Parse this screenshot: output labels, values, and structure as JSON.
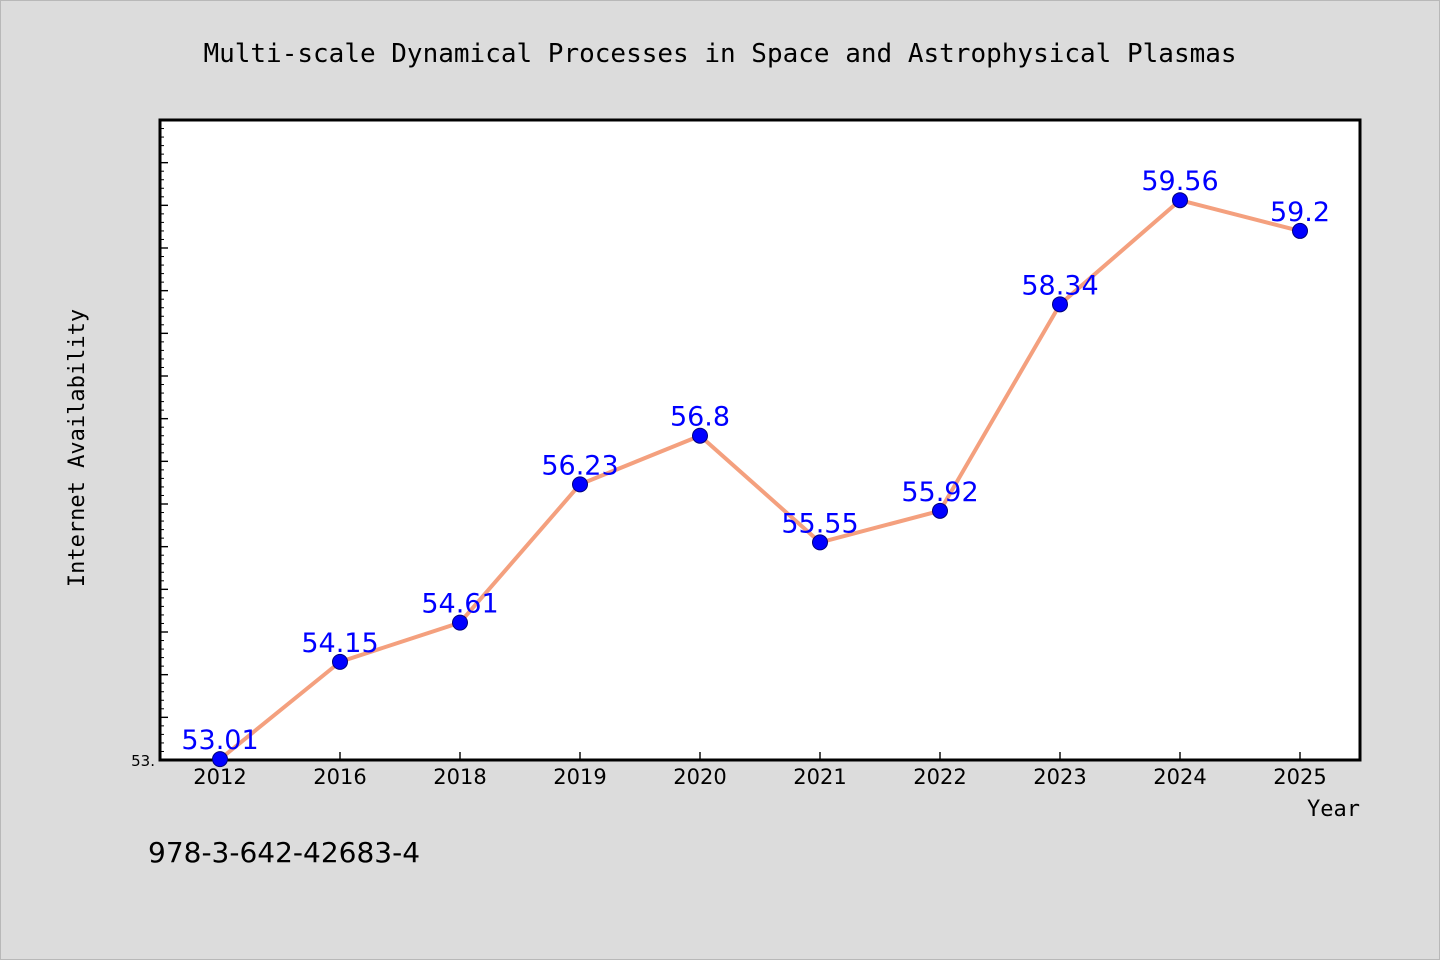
{
  "chart_data": {
    "type": "line",
    "title": "Multi-scale Dynamical Processes in Space and Astrophysical Plasmas",
    "xlabel": "Year",
    "ylabel": "Internet Availability",
    "categories": [
      "2012",
      "2016",
      "2018",
      "2019",
      "2020",
      "2021",
      "2022",
      "2023",
      "2024",
      "2025"
    ],
    "series": [
      {
        "values": [
          53.01,
          54.15,
          54.61,
          56.23,
          56.8,
          55.55,
          55.92,
          58.34,
          59.56,
          59.2
        ],
        "data_labels": [
          "53.01",
          "54.15",
          "54.61",
          "56.23",
          "56.8",
          "55.55",
          "55.92",
          "58.34",
          "59.56",
          "59.2"
        ]
      }
    ],
    "ylim": [
      53.0,
      60.5
    ],
    "y_tick_label": "53.",
    "grid": false,
    "colors": {
      "line": "#f4a07e",
      "marker": "#0000ff",
      "data_label": "#0000ff",
      "plot_background": "#ffffff",
      "figure_background": "#dcdcdc"
    }
  },
  "footer": {
    "isbn": "978-3-642-42683-4"
  }
}
